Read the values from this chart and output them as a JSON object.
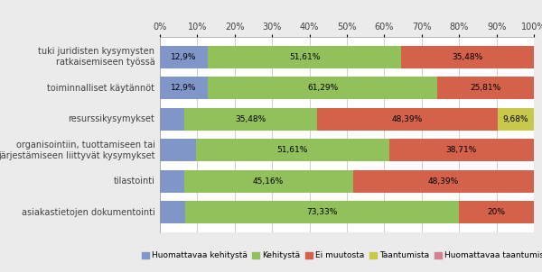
{
  "categories": [
    "tuki juridisten kysymysten\nratkaisemiseen työssä",
    "toiminnalliset käytännöt",
    "resurssikysymykset",
    "organisointiin, tuottamiseen tai\njärjestämiseen liittyvät kysymykset",
    "tilastointi",
    "asiakastietojen dokumentointi"
  ],
  "series": [
    {
      "name": "Huomattavaa kehitystä",
      "color": "#8096C8",
      "values": [
        12.9,
        12.9,
        6.45,
        9.68,
        6.45,
        6.67
      ]
    },
    {
      "name": "Kehitystä",
      "color": "#92C05A",
      "values": [
        51.61,
        61.29,
        35.48,
        51.61,
        45.16,
        73.33
      ]
    },
    {
      "name": "Ei muutosta",
      "color": "#D4614A",
      "values": [
        35.48,
        25.81,
        48.39,
        38.71,
        48.39,
        20.0
      ]
    },
    {
      "name": "Taantumista",
      "color": "#C8C84A",
      "values": [
        0.01,
        0.01,
        9.68,
        0.0,
        0.0,
        0.0
      ]
    },
    {
      "name": "Huomattavaa taantumista",
      "color": "#D48090",
      "values": [
        0.0,
        0.0,
        0.0,
        0.0,
        0.0,
        0.0
      ]
    }
  ],
  "bar_labels": [
    [
      "12,9%",
      "51,61%",
      "35,48%",
      "",
      ""
    ],
    [
      "12,9%",
      "61,29%",
      "25,81%",
      "",
      ""
    ],
    [
      "",
      "35,48%",
      "48,39%",
      "9,68%",
      ""
    ],
    [
      "",
      "51,61%",
      "38,71%",
      "",
      ""
    ],
    [
      "",
      "45,16%",
      "48,39%",
      "",
      ""
    ],
    [
      "",
      "73,33%",
      "20%",
      "",
      ""
    ]
  ],
  "background_color": "#EBEBEB",
  "plot_area_color": "#FFFFFF",
  "text_color": "#404040",
  "font_size": 7.0,
  "label_font_size": 6.5
}
